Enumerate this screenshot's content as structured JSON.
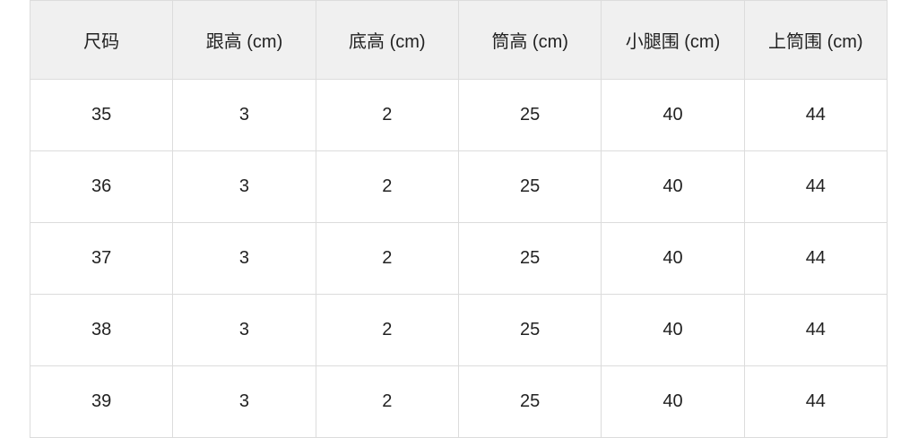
{
  "table": {
    "headers": [
      "尺码",
      "跟高 (cm)",
      "底高 (cm)",
      "筒高 (cm)",
      "小腿围 (cm)",
      "上筒围 (cm)"
    ],
    "rows": [
      [
        "35",
        "3",
        "2",
        "25",
        "40",
        "44"
      ],
      [
        "36",
        "3",
        "2",
        "25",
        "40",
        "44"
      ],
      [
        "37",
        "3",
        "2",
        "25",
        "40",
        "44"
      ],
      [
        "38",
        "3",
        "2",
        "25",
        "40",
        "44"
      ],
      [
        "39",
        "3",
        "2",
        "25",
        "40",
        "44"
      ]
    ]
  },
  "colors": {
    "header_bg": "#f0f0f0",
    "border": "#dcdcdc",
    "text": "#222222"
  }
}
